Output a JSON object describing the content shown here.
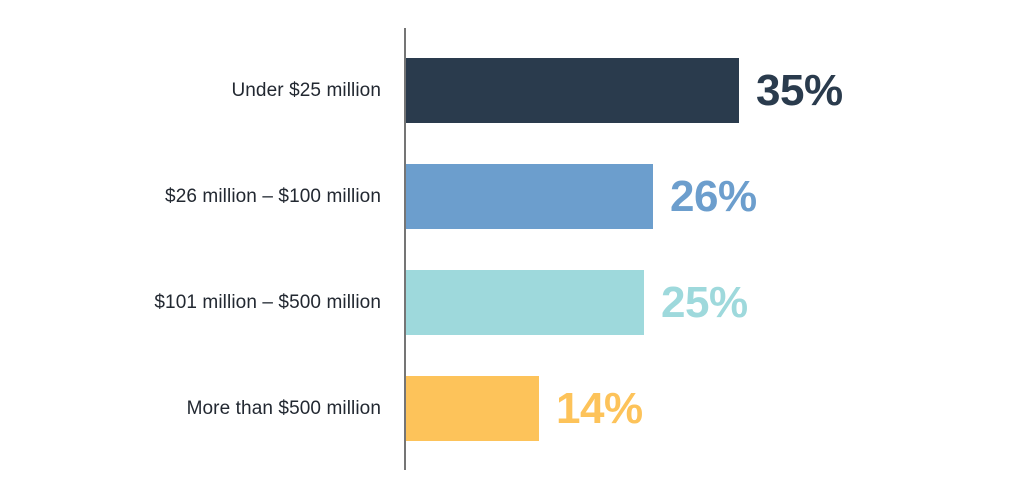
{
  "chart_data": {
    "type": "bar",
    "orientation": "horizontal",
    "title": "",
    "xlabel": "",
    "ylabel": "",
    "categories": [
      "Under $25 million",
      "$26 million – $100 million",
      "$101 million – $500 million",
      "More than $500 million"
    ],
    "values": [
      35,
      26,
      25,
      14
    ],
    "value_labels": [
      "35%",
      "26%",
      "25%",
      "14%"
    ],
    "bar_colors": [
      "#2a3b4d",
      "#6c9ecd",
      "#9ed9dc",
      "#fdc35a"
    ],
    "value_label_colors": [
      "#2a3b4d",
      "#6c9ecd",
      "#9ed9dc",
      "#fdc35a"
    ],
    "category_label_color": "#222831",
    "axis_line_color": "#757575",
    "background_color": "#ffffff",
    "xlim": [
      0,
      37
    ],
    "grid": false,
    "legend": false
  }
}
